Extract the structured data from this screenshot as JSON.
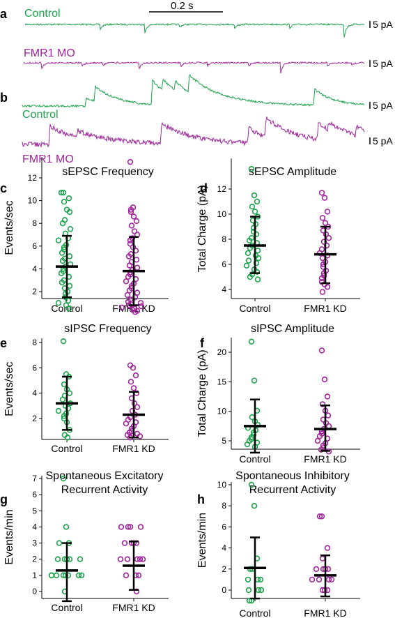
{
  "colors": {
    "control": "#1aa34a",
    "fmr1": "#a0239b",
    "black": "#000000"
  },
  "traces": {
    "scale_bar_time": "0.2 s",
    "scale_bar_amp": "5 pA",
    "panel_a": {
      "letter": "a",
      "label_top": "Control",
      "label_bottom": "FMR1 MO"
    },
    "panel_b": {
      "letter": "b",
      "label_top": "Control",
      "label_bottom": "FMR1 MO"
    }
  },
  "chart_data": [
    {
      "id": "c",
      "letter": "c",
      "type": "scatter",
      "title": "sEPSC Frequency",
      "ylabel": "Events/sec",
      "categories": [
        "Control",
        "FMR1 KD"
      ],
      "ylim": [
        0,
        13.6
      ],
      "yticks": [
        2,
        4,
        6,
        8,
        10,
        12
      ],
      "series": [
        {
          "category": "Control",
          "mean": 4.2,
          "sd_low": 1.5,
          "sd_high": 6.9,
          "values": [
            10.7,
            10.7,
            10.2,
            9.9,
            9.2,
            9.0,
            8.3,
            8.0,
            7.5,
            7.1,
            6.7,
            6.5,
            6.1,
            5.9,
            5.7,
            5.4,
            5.1,
            4.9,
            4.7,
            4.4,
            4.2,
            4.0,
            3.8,
            3.6,
            3.3,
            3.0,
            2.8,
            2.5,
            2.3,
            2.0,
            1.8,
            1.5,
            1.2,
            1.0,
            0.8,
            0.5
          ]
        },
        {
          "category": "FMR1 KD",
          "mean": 3.8,
          "sd_low": 0.8,
          "sd_high": 6.8,
          "values": [
            13.4,
            9.4,
            9.2,
            9.0,
            8.6,
            8.2,
            7.8,
            7.3,
            7.0,
            6.7,
            6.5,
            6.2,
            5.9,
            5.6,
            5.3,
            5.1,
            4.8,
            4.6,
            4.3,
            4.1,
            3.9,
            3.7,
            3.5,
            3.3,
            3.1,
            2.9,
            2.7,
            2.5,
            2.3,
            2.1,
            1.9,
            1.7,
            1.5,
            1.3,
            1.1,
            1.0,
            0.9,
            0.8,
            0.7,
            0.6,
            0.5,
            0.4,
            0.3,
            0.2
          ]
        }
      ]
    },
    {
      "id": "d",
      "letter": "d",
      "type": "scatter",
      "title": "sEPSC Amplitude",
      "ylabel": "Total Charge (pA)",
      "categories": [
        "Control",
        "FMR1 KD"
      ],
      "ylim": [
        3.4,
        14.2
      ],
      "yticks": [
        4,
        6,
        8,
        10,
        12
      ],
      "series": [
        {
          "category": "Control",
          "mean": 7.5,
          "sd_low": 5.3,
          "sd_high": 9.8,
          "values": [
            13.6,
            11.5,
            11.0,
            10.6,
            10.2,
            9.8,
            9.5,
            9.2,
            8.9,
            8.6,
            8.4,
            8.1,
            7.9,
            7.7,
            7.5,
            7.3,
            7.1,
            6.9,
            6.7,
            6.5,
            6.3,
            6.1,
            5.9,
            5.6,
            5.4,
            5.2,
            5.0,
            4.8
          ]
        },
        {
          "category": "FMR1 KD",
          "mean": 6.8,
          "sd_low": 4.5,
          "sd_high": 9.0,
          "values": [
            11.7,
            11.3,
            10.2,
            9.7,
            9.3,
            9.0,
            8.7,
            8.4,
            8.1,
            7.8,
            7.5,
            7.2,
            6.9,
            6.7,
            6.5,
            6.2,
            6.0,
            5.8,
            5.5,
            5.3,
            5.1,
            4.9,
            4.6,
            4.4,
            4.2,
            3.8
          ]
        }
      ]
    },
    {
      "id": "e",
      "letter": "e",
      "type": "scatter",
      "title": "sIPSC Frequency",
      "ylabel": "Events/sec",
      "categories": [
        "Control",
        "FMR1 KD"
      ],
      "ylim": [
        0,
        8.1
      ],
      "yticks": [
        2,
        4,
        6,
        8
      ],
      "series": [
        {
          "category": "Control",
          "mean": 3.2,
          "sd_low": 1.1,
          "sd_high": 5.3,
          "values": [
            8.1,
            5.5,
            5.3,
            4.7,
            4.3,
            4.0,
            3.8,
            3.5,
            3.2,
            3.0,
            2.8,
            2.6,
            2.4,
            2.2,
            2.0,
            1.7,
            1.1,
            0.7,
            0.5
          ]
        },
        {
          "category": "FMR1 KD",
          "mean": 2.3,
          "sd_low": 0.5,
          "sd_high": 4.1,
          "values": [
            6.2,
            6.0,
            5.4,
            4.9,
            4.4,
            4.0,
            3.6,
            3.2,
            2.9,
            2.6,
            2.3,
            2.1,
            1.9,
            1.7,
            1.6,
            1.4,
            1.2,
            1.0,
            0.9,
            0.8,
            0.7,
            0.6,
            0.5
          ]
        }
      ]
    },
    {
      "id": "f",
      "letter": "f",
      "type": "scatter",
      "title": "sIPSC Amplitude",
      "ylabel": "Total Charge (pA)",
      "categories": [
        "Control",
        "FMR1 KD"
      ],
      "ylim": [
        2.5,
        22
      ],
      "yticks": [
        5,
        10,
        15,
        20
      ],
      "series": [
        {
          "category": "Control",
          "mean": 7.5,
          "sd_low": 3.0,
          "sd_high": 12.0,
          "values": [
            21.8,
            15.2,
            10.1,
            9.0,
            8.3,
            7.7,
            7.2,
            6.8,
            6.4,
            6.0,
            5.6,
            5.3,
            5.0,
            4.7,
            4.4,
            4.0
          ]
        },
        {
          "category": "FMR1 KD",
          "mean": 7.0,
          "sd_low": 3.3,
          "sd_high": 11.0,
          "values": [
            20.3,
            15.4,
            12.5,
            11.2,
            10.1,
            9.3,
            8.6,
            8.0,
            7.5,
            7.0,
            6.6,
            6.2,
            5.8,
            5.4,
            5.0,
            4.6,
            4.2,
            3.8,
            3.5,
            3.2
          ]
        }
      ]
    },
    {
      "id": "g",
      "letter": "g",
      "type": "scatter",
      "title": "Spontaneous Excitatory Recurrent Activity",
      "ylabel": "Events/min",
      "categories": [
        "Control",
        "FMR1 KD"
      ],
      "ylim": [
        -0.5,
        7
      ],
      "yticks": [
        0,
        1,
        2,
        3,
        4,
        5,
        6,
        7
      ],
      "series": [
        {
          "category": "Control",
          "mean": 1.3,
          "sd_low": -0.6,
          "sd_high": 3.0,
          "values": [
            7,
            4,
            3,
            3,
            2,
            2,
            2,
            2,
            2,
            1,
            1,
            1,
            1,
            1,
            1,
            1,
            1,
            0
          ]
        },
        {
          "category": "FMR1 KD",
          "mean": 1.6,
          "sd_low": 0.1,
          "sd_high": 3.1,
          "values": [
            4,
            4,
            4,
            4,
            3,
            3,
            3,
            3,
            2,
            2,
            2,
            2,
            2,
            1,
            1,
            1,
            0
          ]
        }
      ]
    },
    {
      "id": "h",
      "letter": "h",
      "type": "scatter",
      "title": "Spontaneous Inhibitory Recurrent Activity",
      "ylabel": "Events/min",
      "categories": [
        "Control",
        "FMR1 KD"
      ],
      "ylim": [
        -1,
        10
      ],
      "yticks": [
        0,
        2,
        4,
        6,
        8,
        10
      ],
      "series": [
        {
          "category": "Control",
          "mean": 2.1,
          "sd_low": -0.8,
          "sd_high": 5.0,
          "values": [
            10,
            8,
            3,
            2,
            2,
            1,
            1,
            1,
            0,
            0,
            0,
            -1,
            -1
          ]
        },
        {
          "category": "FMR1 KD",
          "mean": 1.4,
          "sd_low": -0.6,
          "sd_high": 3.3,
          "values": [
            7,
            7,
            4,
            3,
            2,
            2,
            2,
            2,
            1,
            1,
            1,
            1,
            0,
            0,
            0
          ]
        }
      ]
    }
  ]
}
